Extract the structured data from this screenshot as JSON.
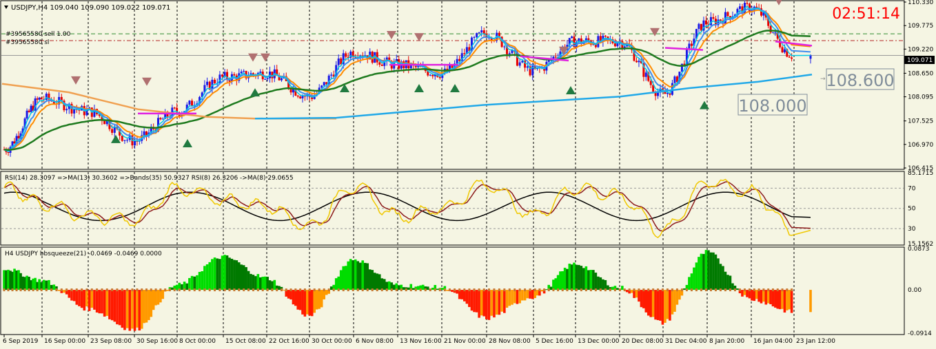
{
  "colors": {
    "bg": "#f5f5e3",
    "grid": "#000000",
    "up": "#1a1ae6",
    "down": "#e60000",
    "ema_fast": "#00c8e6",
    "ema_mid": "#3c8cf0",
    "ema_orange": "#ff8c00",
    "ma_green": "#1e7a1e",
    "ma_long_orange": "#f0a050",
    "ma_long_blue": "#20a8e8",
    "magenta": "#e020e0",
    "clock": "#ff0000",
    "rsi": "#f0c800",
    "rsi_ma": "#8b1a1a",
    "rsi_bands": "#000000",
    "sq_up": "#00dd00",
    "sq_up_dark": "#007a00",
    "sq_dn": "#ff1a00",
    "sq_dn_light": "#ff9a00",
    "sq_zero": "#c87830"
  },
  "main": {
    "title": "USDJPY,H4  109.040 109.090 109.022 109.071",
    "clock": "02:51:14",
    "sell_label": "#39565580 sell 1.00",
    "sl_label": "#39565580 sl",
    "price_badge": "109.071",
    "level_label_1": "108.600",
    "level_label_2": "108.000",
    "price_ticks": [
      "110.330",
      "109.775",
      "109.220",
      "108.650",
      "108.095",
      "107.525",
      "106.970",
      "106.415"
    ]
  },
  "rsi": {
    "header": "RSI(14) 28.3097  =>MA(13) 30.3602  =>Bands(35) 50.9327  RSI(8) 26.3206  ->MA(8) 29.0655",
    "ticks": [
      "85.1715",
      "70",
      "50",
      "30",
      "15.1562"
    ]
  },
  "squeeze": {
    "header": "H4 USDJPY bbsqueeze(21) -0.0469 -0.0469 0.0000",
    "ticks": [
      "0.0873",
      "0.00",
      "-0.0914"
    ]
  },
  "time_labels": [
    "6 Sep 2019",
    "16 Sep 00:00",
    "23 Sep 08:00",
    "30 Sep 16:00",
    "8 Oct 00:00",
    "15 Oct 08:00",
    "22 Oct 16:00",
    "30 Oct 00:00",
    "6 Nov 08:00",
    "13 Nov 16:00",
    "21 Nov 00:00",
    "28 Nov 08:00",
    "5 Dec 16:00",
    "13 Dec 00:00",
    "20 Dec 08:00",
    "31 Dec 04:00",
    "8 Jan 20:00",
    "16 Jan 04:00",
    "23 Jan 12:00"
  ],
  "chart_data": [
    {
      "type": "line",
      "title": "USDJPY,H4",
      "series": [
        {
          "name": "USDJPY",
          "x": [
            "6 Sep 2019",
            "16 Sep 00:00",
            "23 Sep 08:00",
            "30 Sep 16:00",
            "8 Oct 00:00",
            "15 Oct 08:00",
            "22 Oct 16:00",
            "30 Oct 00:00",
            "6 Nov 08:00",
            "13 Nov 16:00",
            "21 Nov 00:00",
            "28 Nov 08:00",
            "5 Dec 16:00",
            "13 Dec 00:00",
            "20 Dec 08:00",
            "31 Dec 04:00",
            "8 Jan 20:00",
            "16 Jan 04:00",
            "23 Jan 12:00"
          ],
          "values": [
            106.85,
            108.05,
            107.75,
            107.05,
            107.75,
            108.55,
            108.65,
            108.1,
            109.15,
            108.85,
            108.65,
            109.6,
            108.7,
            109.4,
            109.4,
            108.15,
            109.85,
            110.2,
            109.07
          ]
        }
      ],
      "ylim": [
        106.415,
        110.33
      ]
    },
    {
      "type": "line",
      "title": "RSI(14)",
      "series": [
        {
          "name": "RSI(14)",
          "values": [
            70,
            55,
            42,
            38,
            70,
            58,
            52,
            32,
            72,
            42,
            50,
            74,
            43,
            70,
            62,
            27,
            76,
            66,
            28.3097
          ]
        }
      ],
      "ylim": [
        15.1562,
        85.1715
      ]
    },
    {
      "type": "bar",
      "title": "bbsqueeze(21)",
      "categories": [
        "6 Sep 2019",
        "16 Sep 00:00",
        "23 Sep 08:00",
        "30 Sep 16:00",
        "8 Oct 00:00",
        "15 Oct 08:00",
        "22 Oct 16:00",
        "30 Oct 00:00",
        "6 Nov 08:00",
        "13 Nov 16:00",
        "21 Nov 00:00",
        "28 Nov 08:00",
        "5 Dec 16:00",
        "13 Dec 00:00",
        "20 Dec 08:00",
        "31 Dec 04:00",
        "8 Jan 20:00",
        "16 Jan 04:00",
        "23 Jan 12:00"
      ],
      "values": [
        0.045,
        0.02,
        -0.04,
        -0.085,
        0.01,
        0.07,
        0.025,
        -0.055,
        0.065,
        0.01,
        0.005,
        -0.06,
        -0.015,
        0.055,
        0.005,
        -0.07,
        0.08,
        -0.02,
        -0.0469
      ],
      "ylim": [
        -0.0914,
        0.0873
      ]
    }
  ]
}
